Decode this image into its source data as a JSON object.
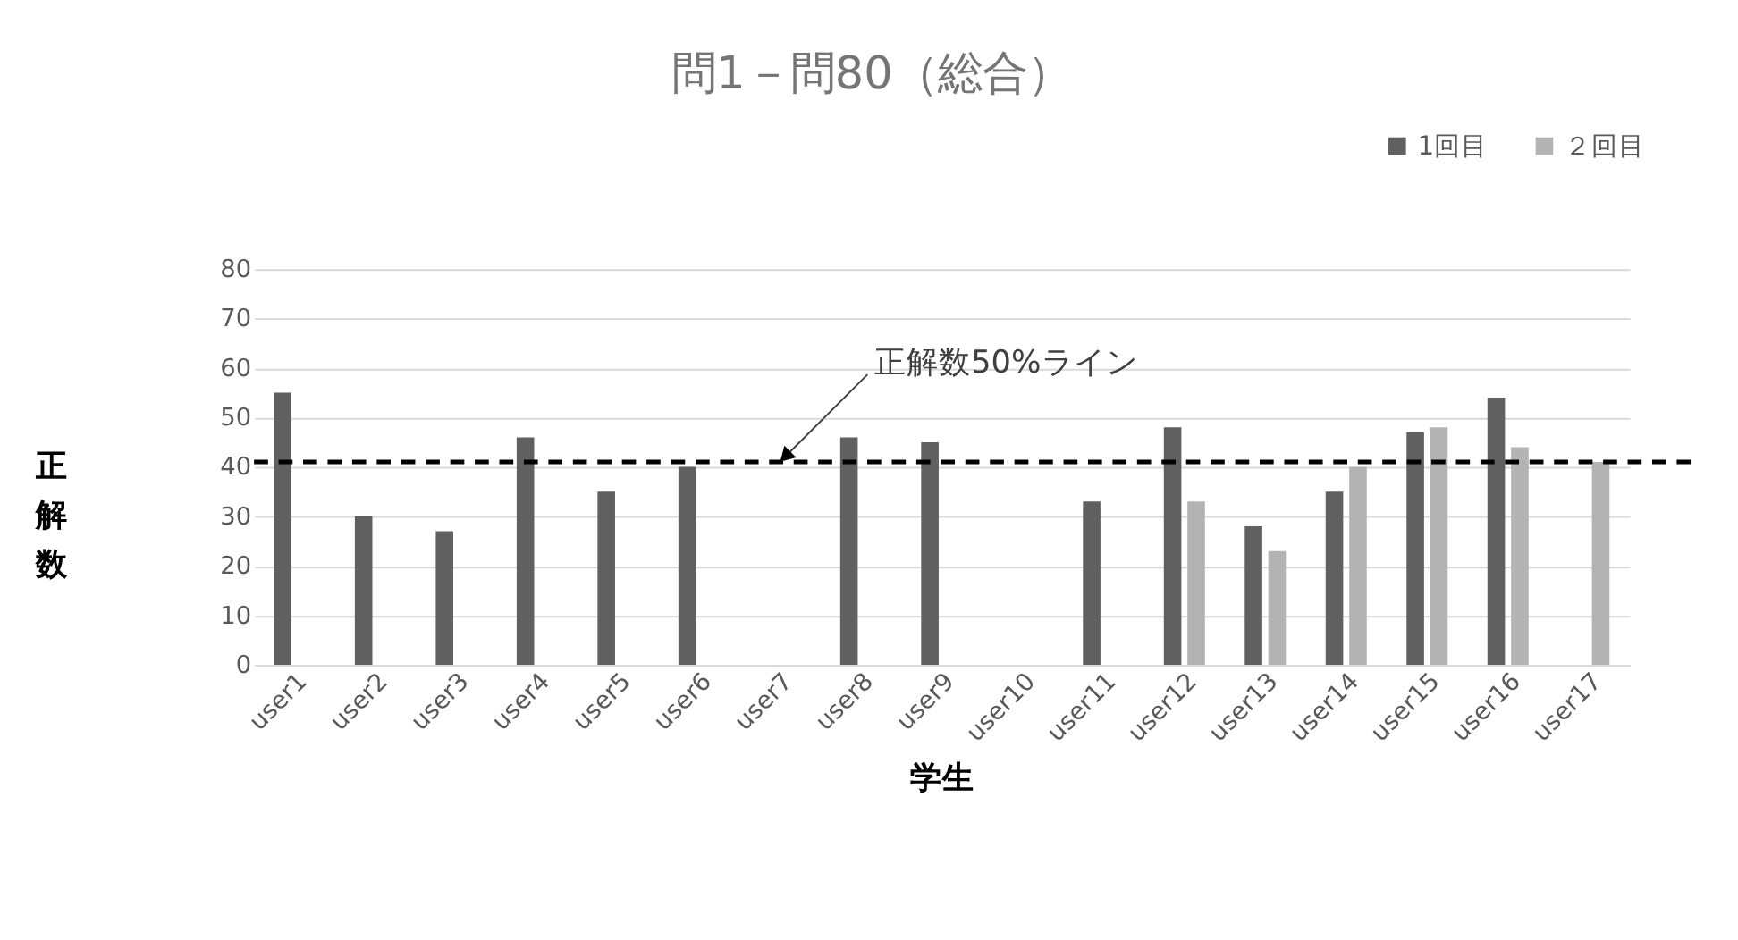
{
  "chart_data": {
    "type": "bar",
    "title": "問1－問80（総合）",
    "xlabel": "学生",
    "ylabel": "正解数",
    "categories": [
      "user1",
      "user2",
      "user3",
      "user4",
      "user5",
      "user6",
      "user7",
      "user8",
      "user9",
      "user10",
      "user11",
      "user12",
      "user13",
      "user14",
      "user15",
      "user16",
      "user17"
    ],
    "series": [
      {
        "name": "1回目",
        "color": "#606060",
        "values": [
          55,
          30,
          27,
          46,
          35,
          40,
          null,
          46,
          45,
          null,
          33,
          48,
          28,
          35,
          47,
          54,
          null
        ]
      },
      {
        "name": "２回目",
        "color": "#b3b3b3",
        "values": [
          null,
          null,
          null,
          null,
          null,
          null,
          null,
          null,
          null,
          null,
          null,
          33,
          23,
          40,
          48,
          44,
          41
        ]
      }
    ],
    "ylim": [
      0,
      80
    ],
    "yticks": [
      0,
      10,
      20,
      30,
      40,
      50,
      60,
      70,
      80
    ],
    "grid": "y",
    "legend": "top right",
    "ref_lines": [
      {
        "axis": "y",
        "value": 41,
        "color": "#000000",
        "line_style": "dashed"
      }
    ],
    "annotations": [
      {
        "text": "正解数50%ライン",
        "x": "user7",
        "y": 41
      }
    ]
  }
}
